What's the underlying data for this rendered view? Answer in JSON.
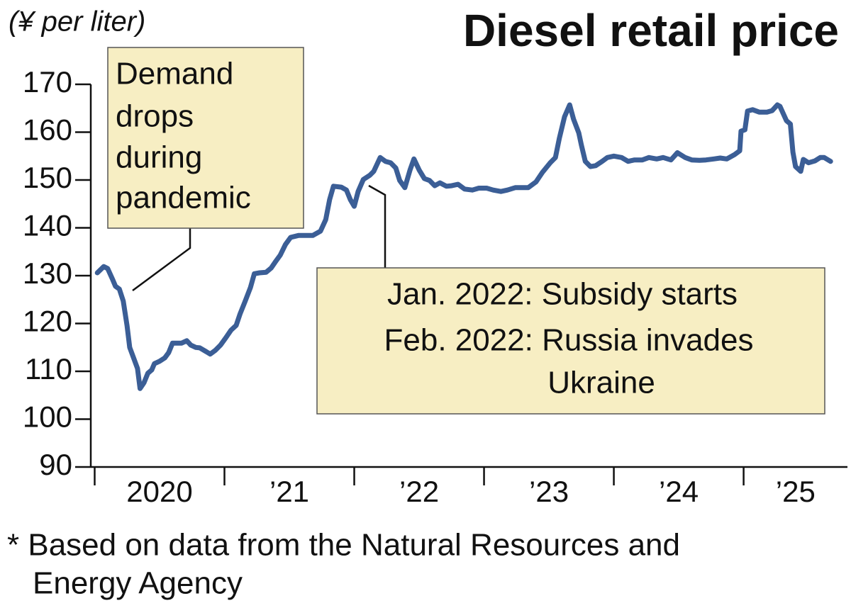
{
  "chart_data": {
    "type": "line",
    "title": "Diesel retail price",
    "y_axis_label": "(¥ per liter)",
    "footnote": [
      "* Based on data from the Natural Resources and",
      "Energy Agency"
    ],
    "annotations": [
      {
        "lines": [
          "Demand",
          "drops",
          "during",
          "pandemic"
        ]
      },
      {
        "lines": [
          "Jan. 2022: Subsidy starts",
          "Feb. 2022: Russia invades",
          "Ukraine"
        ]
      }
    ],
    "color": "#3b5e96",
    "grid": false,
    "xlim": [
      2019.97,
      2025.8
    ],
    "xticks": [
      2020,
      {
        "value": 2021,
        "label": "’21"
      },
      {
        "value": 2022,
        "label": "’22"
      },
      {
        "value": 2023,
        "label": "’23"
      },
      {
        "value": 2024,
        "label": "’24"
      },
      {
        "value": 2025,
        "label": "’25"
      }
    ],
    "ylim": [
      90,
      170
    ],
    "yticks": [
      90,
      100,
      110,
      120,
      130,
      140,
      150,
      160,
      170
    ],
    "x": [
      2020.02,
      2020.07,
      2020.1,
      2020.14,
      2020.16,
      2020.19,
      2020.22,
      2020.25,
      2020.27,
      2020.3,
      2020.33,
      2020.35,
      2020.38,
      2020.41,
      2020.44,
      2020.46,
      2020.5,
      2020.54,
      2020.57,
      2020.6,
      2020.63,
      2020.67,
      2020.71,
      2020.74,
      2020.78,
      2020.81,
      2020.86,
      2020.89,
      2020.93,
      2020.97,
      2021.01,
      2021.05,
      2021.09,
      2021.12,
      2021.16,
      2021.2,
      2021.23,
      2021.27,
      2021.32,
      2021.36,
      2021.39,
      2021.43,
      2021.47,
      2021.51,
      2021.57,
      2021.62,
      2021.68,
      2021.74,
      2021.78,
      2021.81,
      2021.84,
      2021.9,
      2021.94,
      2021.97,
      2022.0,
      2022.03,
      2022.07,
      2022.12,
      2022.15,
      2022.2,
      2022.24,
      2022.28,
      2022.32,
      2022.35,
      2022.39,
      2022.43,
      2022.46,
      2022.5,
      2022.54,
      2022.58,
      2022.62,
      2022.66,
      2022.71,
      2022.75,
      2022.8,
      2022.85,
      2022.91,
      2022.96,
      2023.02,
      2023.07,
      2023.13,
      2023.18,
      2023.24,
      2023.29,
      2023.34,
      2023.4,
      2023.45,
      2023.51,
      2023.55,
      2023.58,
      2023.62,
      2023.66,
      2023.69,
      2023.73,
      2023.75,
      2023.78,
      2023.82,
      2023.86,
      2023.91,
      2023.95,
      2024.0,
      2024.06,
      2024.11,
      2024.16,
      2024.22,
      2024.27,
      2024.33,
      2024.38,
      2024.44,
      2024.49,
      2024.55,
      2024.6,
      2024.66,
      2024.71,
      2024.77,
      2024.82,
      2024.87,
      2024.93,
      2024.97,
      2024.98,
      2025.01,
      2025.03,
      2025.07,
      2025.12,
      2025.18,
      2025.22,
      2025.26,
      2025.28,
      2025.33,
      2025.36,
      2025.38,
      2025.4,
      2025.44,
      2025.46,
      2025.5,
      2025.55,
      2025.59,
      2025.62,
      2025.67
    ],
    "values": [
      130.6,
      131.9,
      131.5,
      129.1,
      127.8,
      127.2,
      124.7,
      119.5,
      115.0,
      112.8,
      110.6,
      106.4,
      107.6,
      109.6,
      110.3,
      111.6,
      112.1,
      112.8,
      113.9,
      115.9,
      115.9,
      115.9,
      116.4,
      115.5,
      115.0,
      114.9,
      114.1,
      113.6,
      114.4,
      115.5,
      117.0,
      118.6,
      119.6,
      122.0,
      124.7,
      127.5,
      130.4,
      130.6,
      130.7,
      131.6,
      132.8,
      134.3,
      136.5,
      138.0,
      138.4,
      138.4,
      138.4,
      139.3,
      141.7,
      145.9,
      148.7,
      148.5,
      147.9,
      145.9,
      144.5,
      147.6,
      150.1,
      151.0,
      151.8,
      154.7,
      153.9,
      153.6,
      152.5,
      149.9,
      148.4,
      152.1,
      154.4,
      152.1,
      150.3,
      149.9,
      148.8,
      149.4,
      148.7,
      148.8,
      149.1,
      148.1,
      147.9,
      148.3,
      148.3,
      147.9,
      147.6,
      147.9,
      148.4,
      148.4,
      148.4,
      149.6,
      151.6,
      153.6,
      154.7,
      158.7,
      163.2,
      165.7,
      162.7,
      159.8,
      157.3,
      153.9,
      152.8,
      153.0,
      153.9,
      154.7,
      155.0,
      154.7,
      153.9,
      154.2,
      154.2,
      154.7,
      154.4,
      154.7,
      154.2,
      155.7,
      154.7,
      154.2,
      154.1,
      154.2,
      154.4,
      154.6,
      154.4,
      155.3,
      156.1,
      160.2,
      160.5,
      164.4,
      164.7,
      164.2,
      164.2,
      164.5,
      165.7,
      165.4,
      162.4,
      161.7,
      155.8,
      152.8,
      151.8,
      154.3,
      153.6,
      154.0,
      154.7,
      154.7,
      153.9
    ]
  }
}
